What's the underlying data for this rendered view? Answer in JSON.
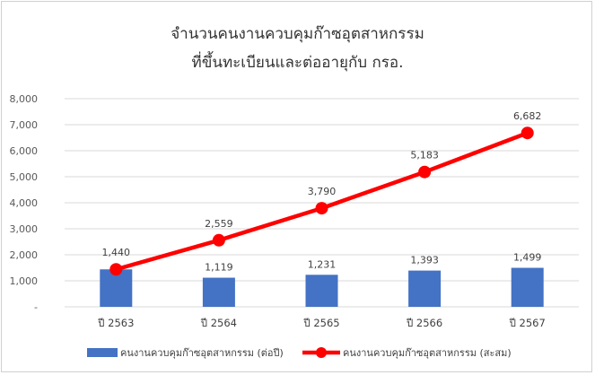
{
  "chart_data": {
    "type": "bar+line",
    "title": [
      "จำนวนคนงานควบคุมก๊าซอุตสาหกรรม",
      "ที่ขึ้นทะเบียนและต่ออายุกับ  กรอ."
    ],
    "categories": [
      "ปี 2563",
      "ปี 2564",
      "ปี 2565",
      "ปี 2566",
      "ปี 2567"
    ],
    "series": [
      {
        "name": "คนงานควบคุมก๊าซอุตสาหกรรม (ต่อปี)",
        "type": "bar",
        "color": "#4472C4",
        "values": [
          1440,
          1119,
          1231,
          1393,
          1499
        ]
      },
      {
        "name": "คนงานควบคุมก๊าซอุตสาหกรรม (สะสม)",
        "type": "line",
        "color": "#FF0000",
        "values": [
          1440,
          2559,
          3790,
          5183,
          6682
        ]
      }
    ],
    "data_labels": {
      "bar": [
        "",
        "1,119",
        "1,231",
        "1,393",
        "1,499"
      ],
      "line": [
        "1,440",
        "2,559",
        "3,790",
        "5,183",
        "6,682"
      ]
    },
    "yticks": [
      "-",
      "1,000",
      "2,000",
      "3,000",
      "4,000",
      "5,000",
      "6,000",
      "7,000",
      "8,000"
    ],
    "ylim": [
      0,
      8000
    ],
    "grid": true,
    "legend": "bottom"
  }
}
